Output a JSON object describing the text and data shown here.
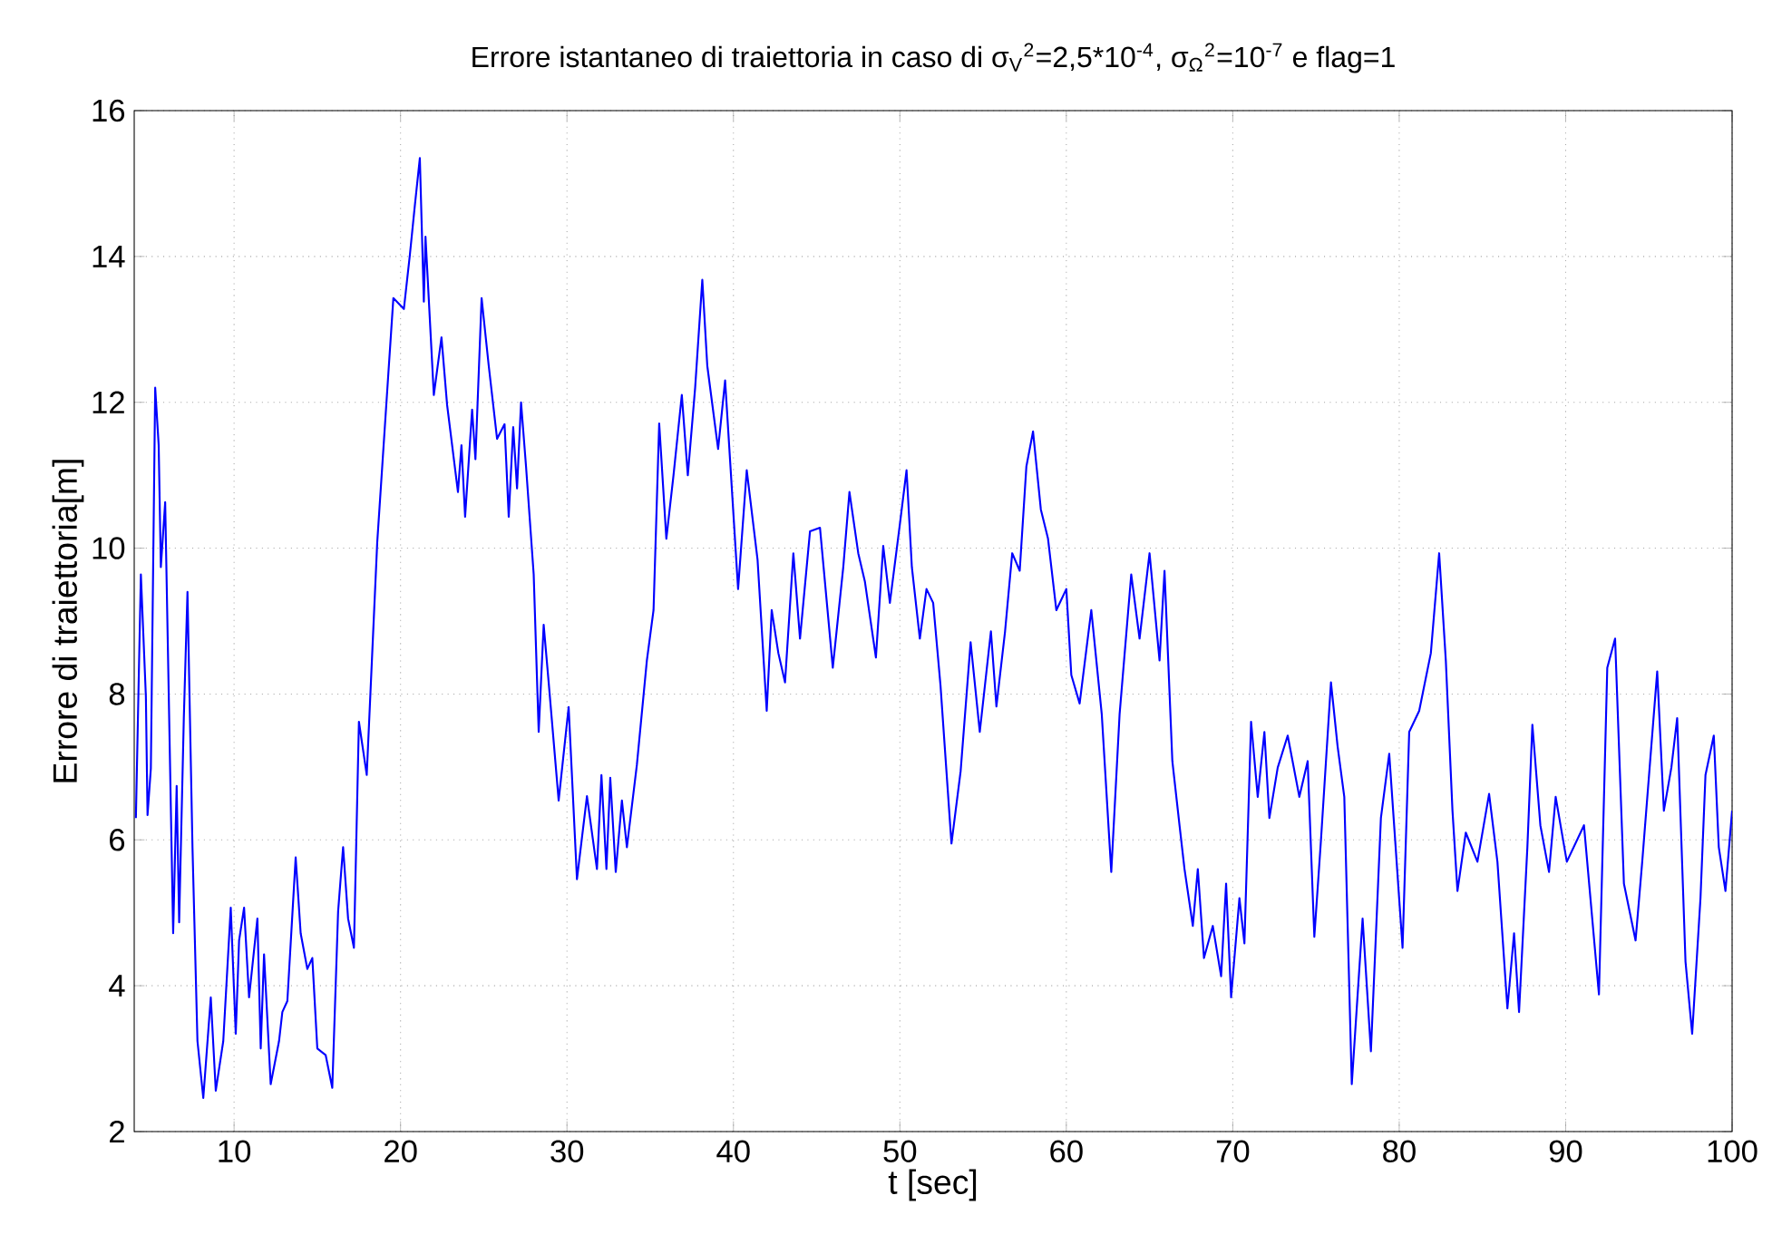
{
  "chart_data": {
    "type": "line",
    "title": "Errore istantaneo di traiettoria in caso di σ$_{V}$$^{2}$=2,5*10$^{-4}$, σ$_{Ω}$$^{2}$=10$^{-7}$ e flag=1",
    "xlabel": "t [sec]",
    "ylabel": "Errore di traiettoria[m]",
    "color": "#0000ff",
    "grid": true,
    "xlim": [
      4,
      100
    ],
    "ylim": [
      2,
      16
    ],
    "xticks": [
      10,
      20,
      30,
      40,
      50,
      60,
      70,
      80,
      90,
      100
    ],
    "yticks": [
      2,
      4,
      6,
      8,
      10,
      12,
      14,
      16
    ],
    "x": [
      4.1,
      4.4,
      4.7,
      4.8,
      5.0,
      5.26,
      5.47,
      5.6,
      5.86,
      6.34,
      6.55,
      6.7,
      6.98,
      7.2,
      7.5,
      7.8,
      8.15,
      8.6,
      8.9,
      9.35,
      9.8,
      10.1,
      10.3,
      10.6,
      10.9,
      11.4,
      11.6,
      11.8,
      12.2,
      12.7,
      12.9,
      13.2,
      13.7,
      14.0,
      14.4,
      14.7,
      15.0,
      15.5,
      15.9,
      16.25,
      16.55,
      16.85,
      17.2,
      17.5,
      17.97,
      18.28,
      18.6,
      18.9,
      19.27,
      19.57,
      20.2,
      20.56,
      20.86,
      21.16,
      21.4,
      21.5,
      22.0,
      22.46,
      22.8,
      23.45,
      23.66,
      23.88,
      24.3,
      24.5,
      24.87,
      25.3,
      25.8,
      26.25,
      26.5,
      26.77,
      27.0,
      27.24,
      27.54,
      28.0,
      28.3,
      28.6,
      28.9,
      29.5,
      30.1,
      30.6,
      31.2,
      31.8,
      32.07,
      32.37,
      32.6,
      32.93,
      33.3,
      33.6,
      34.2,
      34.8,
      35.2,
      35.54,
      35.97,
      36.4,
      36.9,
      37.26,
      37.7,
      38.13,
      38.43,
      39.08,
      39.5,
      40.28,
      40.8,
      41.45,
      42.0,
      42.3,
      42.7,
      43.1,
      43.6,
      44.0,
      44.6,
      45.2,
      45.97,
      46.6,
      46.97,
      47.5,
      47.9,
      48.56,
      49.0,
      49.4,
      50.0,
      50.4,
      50.72,
      51.2,
      51.6,
      52.0,
      52.44,
      53.1,
      53.65,
      54.25,
      54.8,
      55.47,
      55.8,
      56.32,
      56.75,
      57.2,
      57.6,
      58.0,
      58.47,
      58.9,
      59.4,
      60.0,
      60.3,
      60.8,
      61.5,
      62.13,
      62.7,
      63.2,
      63.9,
      64.4,
      65.0,
      65.6,
      65.9,
      66.37,
      66.8,
      67.1,
      67.6,
      67.9,
      68.27,
      68.8,
      69.3,
      69.6,
      69.9,
      70.4,
      70.7,
      71.1,
      71.5,
      71.9,
      72.2,
      72.7,
      73.3,
      74.0,
      74.5,
      74.9,
      75.3,
      75.9,
      76.3,
      76.7,
      77.15,
      77.8,
      78.3,
      78.9,
      79.4,
      80.2,
      80.6,
      81.2,
      81.9,
      82.4,
      82.8,
      83.2,
      83.5,
      84.0,
      84.7,
      85.4,
      85.9,
      86.5,
      86.9,
      87.2,
      87.7,
      88.0,
      88.48,
      89.0,
      89.4,
      90.07,
      91.1,
      92.0,
      92.5,
      92.97,
      93.5,
      94.2,
      94.6,
      95.5,
      95.9,
      96.35,
      96.7,
      97.2,
      97.6,
      98.1,
      98.4,
      98.9,
      99.2,
      99.6,
      100.0
    ],
    "values": [
      6.3,
      9.64,
      7.97,
      6.34,
      6.98,
      12.2,
      11.41,
      9.74,
      10.63,
      4.72,
      6.74,
      4.87,
      7.67,
      9.4,
      5.9,
      3.24,
      2.46,
      3.84,
      2.56,
      3.24,
      5.07,
      3.34,
      4.62,
      5.07,
      3.84,
      4.92,
      3.14,
      4.43,
      2.65,
      3.24,
      3.64,
      3.79,
      5.76,
      4.72,
      4.23,
      4.38,
      3.14,
      3.05,
      2.6,
      5.02,
      5.9,
      4.92,
      4.52,
      7.62,
      6.89,
      8.46,
      10.08,
      11.12,
      12.4,
      13.43,
      13.28,
      14.02,
      14.7,
      15.35,
      13.38,
      14.27,
      12.1,
      12.89,
      11.96,
      10.77,
      11.41,
      10.43,
      11.9,
      11.22,
      13.43,
      12.5,
      11.5,
      11.7,
      10.43,
      11.66,
      10.82,
      12.0,
      11.12,
      9.64,
      7.48,
      8.95,
      8.16,
      6.54,
      7.82,
      5.46,
      6.6,
      5.6,
      6.89,
      5.6,
      6.85,
      5.56,
      6.54,
      5.9,
      7.03,
      8.46,
      9.15,
      11.71,
      10.13,
      11.0,
      12.1,
      11.0,
      12.2,
      13.68,
      12.5,
      11.36,
      12.3,
      9.44,
      11.07,
      9.84,
      7.77,
      9.15,
      8.56,
      8.16,
      9.93,
      8.76,
      10.23,
      10.28,
      8.36,
      9.74,
      10.77,
      9.93,
      9.54,
      8.5,
      10.03,
      9.25,
      10.33,
      11.07,
      9.74,
      8.76,
      9.44,
      9.25,
      8.12,
      5.95,
      6.94,
      8.71,
      7.48,
      8.86,
      7.83,
      8.86,
      9.93,
      9.69,
      11.12,
      11.6,
      10.53,
      10.13,
      9.15,
      9.44,
      8.26,
      7.87,
      9.15,
      7.72,
      5.56,
      7.72,
      9.64,
      8.76,
      9.93,
      8.46,
      9.69,
      7.08,
      6.2,
      5.6,
      4.82,
      5.6,
      4.38,
      4.82,
      4.13,
      5.4,
      3.84,
      5.2,
      4.58,
      7.62,
      6.59,
      7.48,
      6.3,
      6.99,
      7.43,
      6.59,
      7.08,
      4.67,
      6.0,
      8.16,
      7.28,
      6.59,
      2.65,
      4.92,
      3.1,
      6.3,
      7.18,
      4.52,
      7.48,
      7.77,
      8.56,
      9.93,
      8.46,
      6.4,
      5.3,
      6.1,
      5.7,
      6.63,
      5.7,
      3.69,
      4.72,
      3.64,
      5.9,
      7.58,
      6.2,
      5.56,
      6.59,
      5.7,
      6.2,
      3.88,
      8.36,
      8.76,
      5.4,
      4.62,
      5.7,
      8.31,
      6.4,
      6.99,
      7.67,
      4.33,
      3.34,
      5.2,
      6.89,
      7.43,
      5.9,
      5.3,
      6.4
    ]
  }
}
